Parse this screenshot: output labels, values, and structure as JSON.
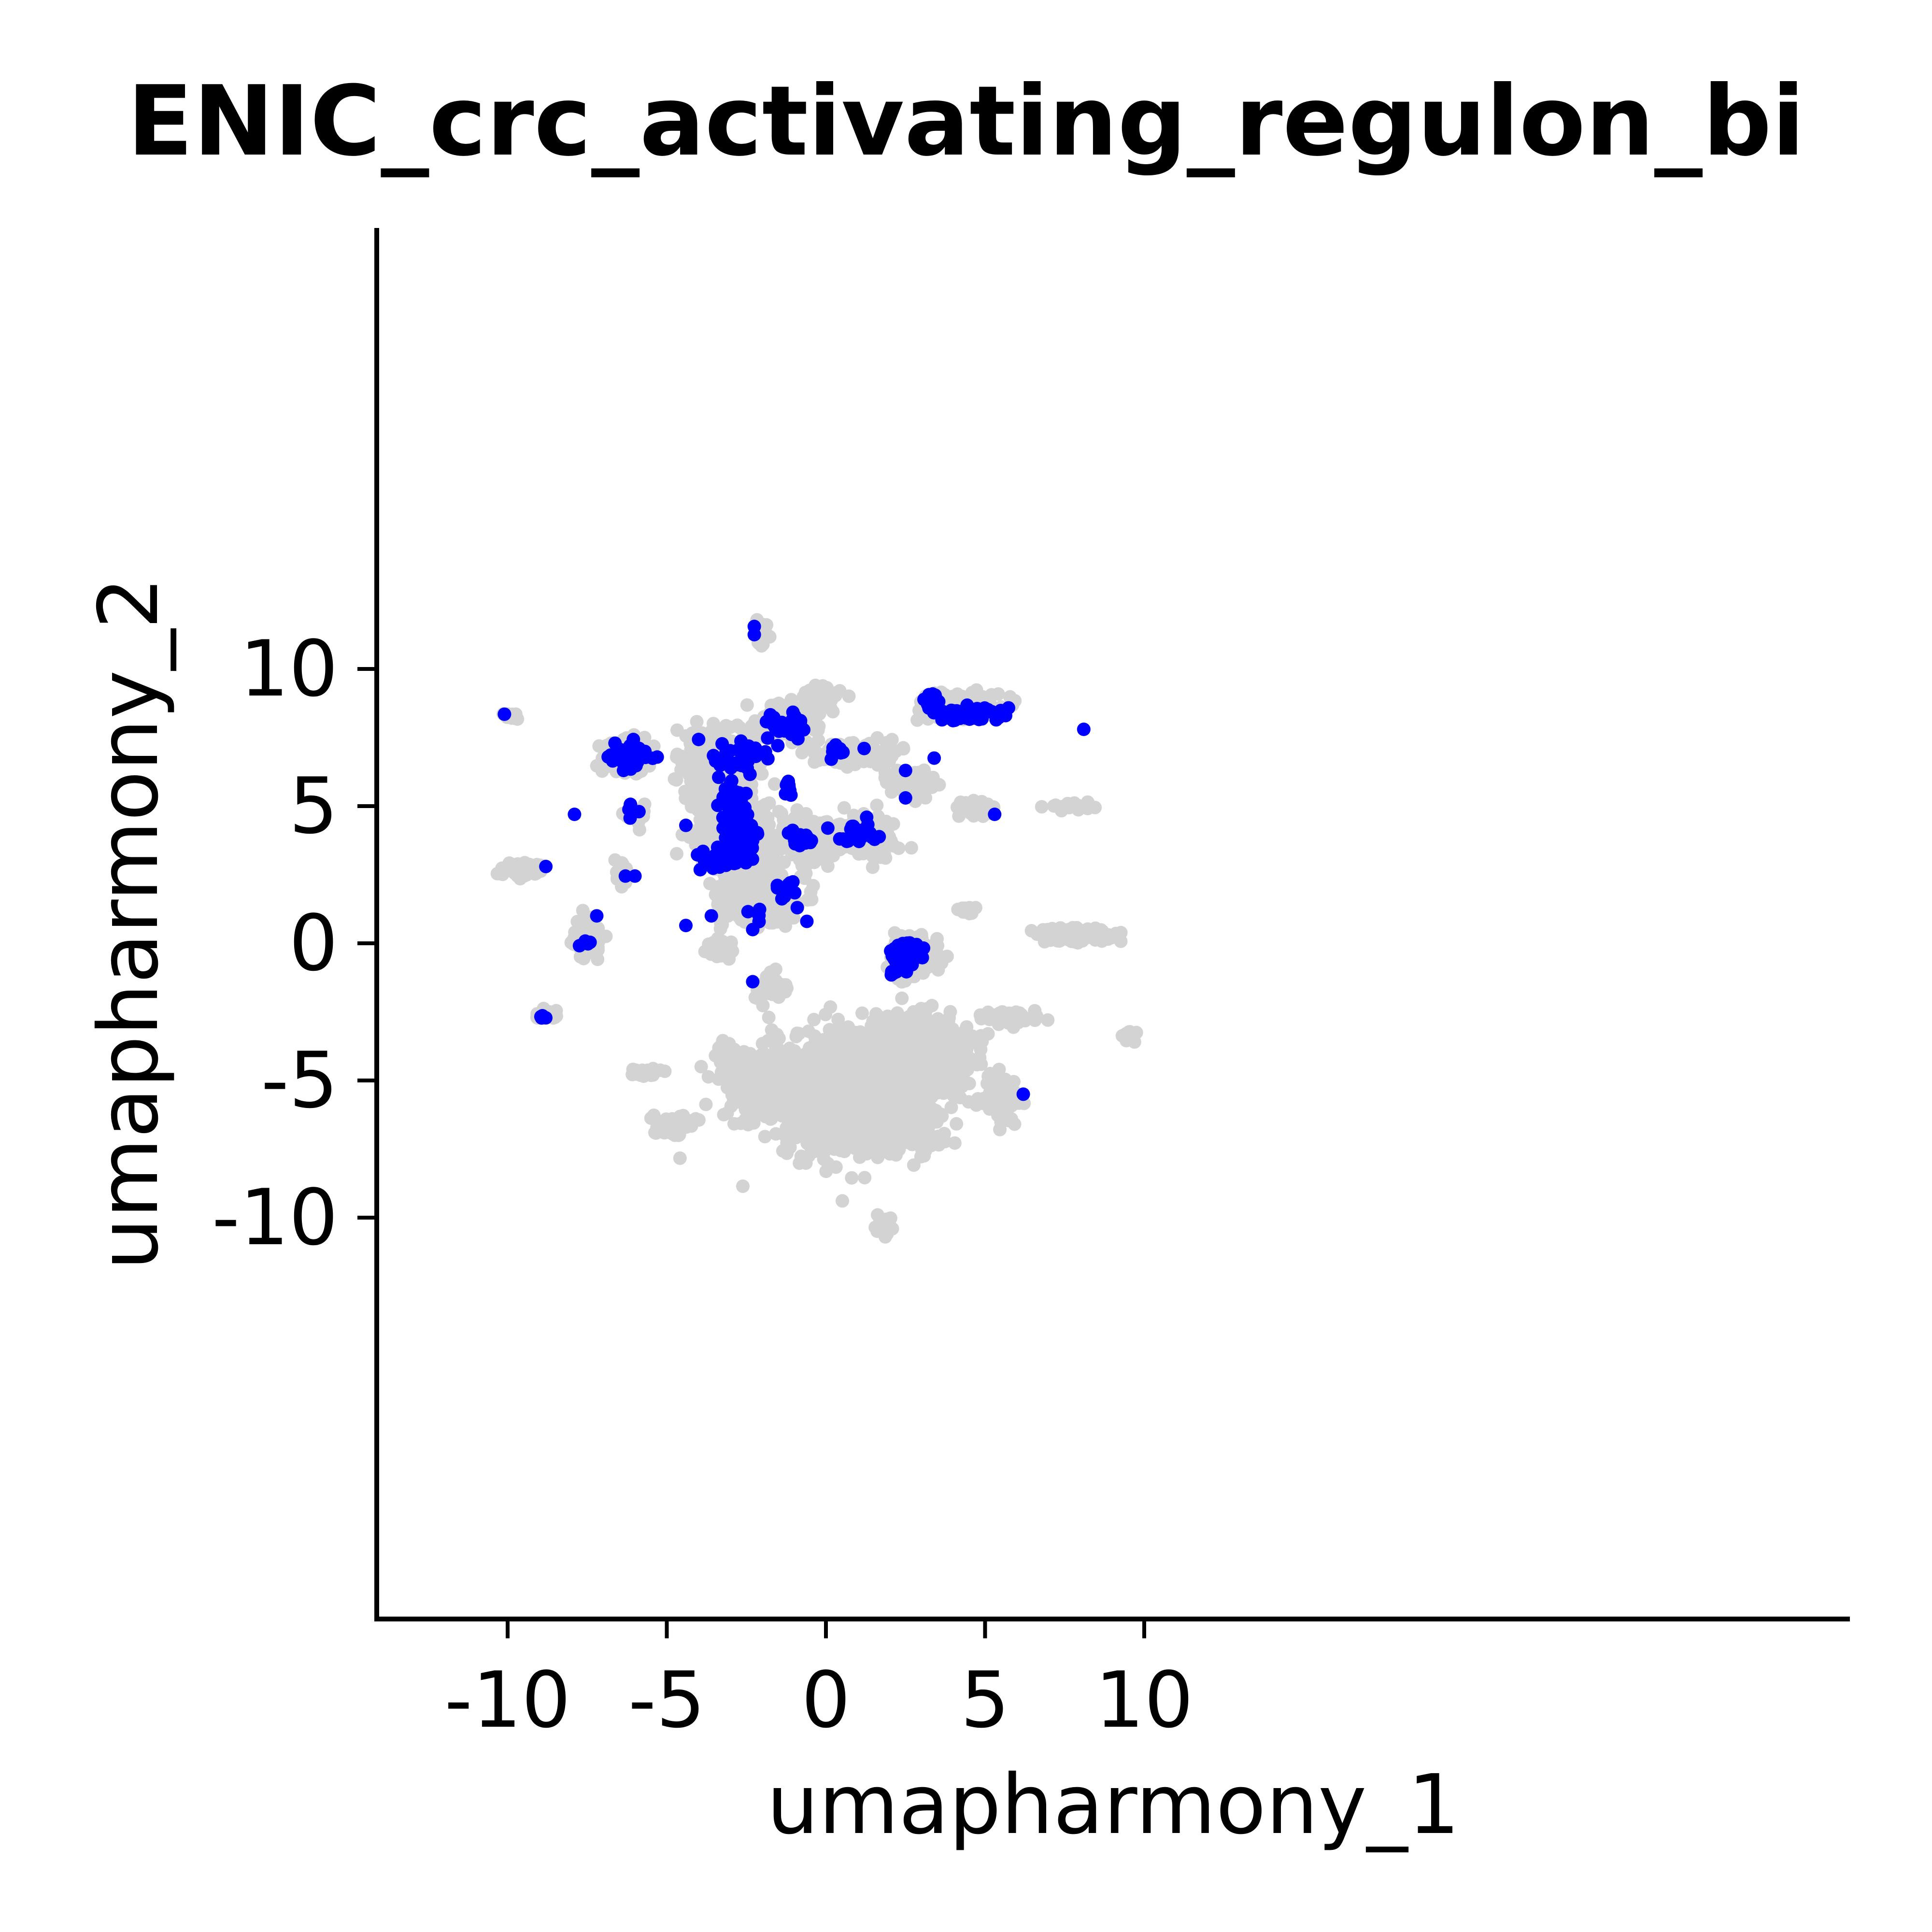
{
  "chart_data": {
    "type": "scatter",
    "title": "ENIC_crc_activating_regulon_bi",
    "xlabel": "umapharmony_1",
    "ylabel": "umapharmony_2",
    "xlim": [
      -12,
      11
    ],
    "ylim": [
      -12,
      13
    ],
    "x_ticks": [
      -10,
      -5,
      0,
      5,
      10
    ],
    "x_tick_labels": [
      "-10",
      "-5",
      "0",
      "5",
      "10"
    ],
    "y_ticks": [
      -10,
      -5,
      0,
      5,
      10
    ],
    "y_tick_labels": [
      "-10",
      "-5",
      "0",
      "5",
      "10"
    ],
    "grid": false,
    "legend": "none",
    "colors": {
      "background_cells": "#d3d3d3",
      "highlighted_cells": "#0000ff",
      "axis": "#000000"
    },
    "series": [
      {
        "color": "#d3d3d3",
        "clusters": [
          {
            "cx": 0.8,
            "cy": -5.5,
            "sx": 2.1,
            "sy": 1.6,
            "n": 1400
          },
          {
            "cx": 2.8,
            "cy": -4.0,
            "sx": 1.5,
            "sy": 1.0,
            "n": 700
          },
          {
            "cx": -1.8,
            "cy": -5.2,
            "sx": 1.2,
            "sy": 1.0,
            "n": 350
          },
          {
            "cx": 1.5,
            "cy": -7.0,
            "sx": 1.6,
            "sy": 0.5,
            "n": 250
          },
          {
            "cx": 5.5,
            "cy": -5.7,
            "sx": 0.5,
            "sy": 0.6,
            "n": 80
          },
          {
            "cx": -2.8,
            "cy": 3.7,
            "sx": 1.0,
            "sy": 1.5,
            "n": 450
          },
          {
            "cx": -3.4,
            "cy": 6.5,
            "sx": 1.0,
            "sy": 1.1,
            "n": 300
          },
          {
            "cx": -1.2,
            "cy": 8.1,
            "sx": 0.8,
            "sy": 0.5,
            "n": 180
          },
          {
            "cx": -0.5,
            "cy": 3.7,
            "sx": 0.8,
            "sy": 0.7,
            "n": 200
          },
          {
            "cx": 1.2,
            "cy": 3.9,
            "sx": 0.8,
            "sy": 0.6,
            "n": 160
          },
          {
            "cx": -2.0,
            "cy": 1.5,
            "sx": 1.0,
            "sy": 0.8,
            "n": 200
          },
          {
            "cx": -6.3,
            "cy": 6.8,
            "sx": 0.6,
            "sy": 0.5,
            "n": 180
          },
          {
            "cx": 0.9,
            "cy": 6.9,
            "sx": 1.0,
            "sy": 0.3,
            "n": 120
          },
          {
            "cx": 4.2,
            "cy": 8.7,
            "sx": 1.0,
            "sy": 0.4,
            "n": 220
          },
          {
            "cx": 2.8,
            "cy": -0.5,
            "sx": 0.6,
            "sy": 0.6,
            "n": 160
          },
          {
            "cx": 7.8,
            "cy": 0.3,
            "sx": 0.8,
            "sy": 0.2,
            "n": 150
          },
          {
            "cx": 2.7,
            "cy": 5.8,
            "sx": 0.6,
            "sy": 0.4,
            "n": 90
          },
          {
            "cx": -9.6,
            "cy": 2.7,
            "sx": 0.5,
            "sy": 0.2,
            "n": 90
          },
          {
            "cx": -7.5,
            "cy": 0.2,
            "sx": 0.4,
            "sy": 0.6,
            "n": 60
          },
          {
            "cx": -4.8,
            "cy": -6.7,
            "sx": 0.5,
            "sy": 0.3,
            "n": 60
          },
          {
            "cx": -5.6,
            "cy": -4.7,
            "sx": 0.4,
            "sy": 0.1,
            "n": 40
          },
          {
            "cx": -2.0,
            "cy": 11.3,
            "sx": 0.15,
            "sy": 0.4,
            "n": 40
          },
          {
            "cx": 1.8,
            "cy": -10.3,
            "sx": 0.2,
            "sy": 0.3,
            "n": 40
          },
          {
            "cx": 4.8,
            "cy": 5.0,
            "sx": 0.5,
            "sy": 0.25,
            "n": 40
          },
          {
            "cx": 7.8,
            "cy": 5.0,
            "sx": 0.4,
            "sy": 0.1,
            "n": 30
          },
          {
            "cx": 5.8,
            "cy": -2.7,
            "sx": 0.7,
            "sy": 0.25,
            "n": 50
          },
          {
            "cx": 9.5,
            "cy": -3.4,
            "sx": 0.2,
            "sy": 0.15,
            "n": 20
          },
          {
            "cx": -9.9,
            "cy": 8.3,
            "sx": 0.2,
            "sy": 0.1,
            "n": 20
          },
          {
            "cx": -8.8,
            "cy": -2.6,
            "sx": 0.3,
            "sy": 0.15,
            "n": 25
          },
          {
            "cx": -6.0,
            "cy": 4.7,
            "sx": 0.3,
            "sy": 0.3,
            "n": 30
          },
          {
            "cx": -6.4,
            "cy": 2.5,
            "sx": 0.2,
            "sy": 0.4,
            "n": 20
          },
          {
            "cx": -0.2,
            "cy": 9.0,
            "sx": 0.5,
            "sy": 0.3,
            "n": 60
          },
          {
            "cx": -1.6,
            "cy": -1.7,
            "sx": 0.5,
            "sy": 0.4,
            "n": 50
          },
          {
            "cx": -3.3,
            "cy": -0.2,
            "sx": 0.4,
            "sy": 0.3,
            "n": 30
          },
          {
            "cx": 4.4,
            "cy": 1.2,
            "sx": 0.2,
            "sy": 0.1,
            "n": 15
          },
          {
            "cx": -3.1,
            "cy": -3.9,
            "sx": 0.3,
            "sy": 0.3,
            "n": 30
          }
        ]
      },
      {
        "color": "#0000ff",
        "clusters": [
          {
            "cx": -2.7,
            "cy": 3.8,
            "sx": 0.35,
            "sy": 0.55,
            "n": 220
          },
          {
            "cx": -3.0,
            "cy": 5.2,
            "sx": 0.3,
            "sy": 0.5,
            "n": 50
          },
          {
            "cx": -3.5,
            "cy": 3.0,
            "sx": 0.4,
            "sy": 0.25,
            "n": 40
          },
          {
            "cx": -2.8,
            "cy": 6.8,
            "sx": 0.9,
            "sy": 0.7,
            "n": 40
          },
          {
            "cx": -6.2,
            "cy": 6.8,
            "sx": 0.45,
            "sy": 0.4,
            "n": 50
          },
          {
            "cx": -1.2,
            "cy": 8.0,
            "sx": 0.45,
            "sy": 0.3,
            "n": 40
          },
          {
            "cx": 4.3,
            "cy": 8.4,
            "sx": 0.75,
            "sy": 0.2,
            "n": 80
          },
          {
            "cx": 3.3,
            "cy": 8.9,
            "sx": 0.2,
            "sy": 0.2,
            "n": 15
          },
          {
            "cx": 2.5,
            "cy": -0.4,
            "sx": 0.4,
            "sy": 0.45,
            "n": 80
          },
          {
            "cx": -0.8,
            "cy": 3.8,
            "sx": 0.3,
            "sy": 0.2,
            "n": 25
          },
          {
            "cx": 1.0,
            "cy": 4.0,
            "sx": 0.5,
            "sy": 0.4,
            "n": 25
          },
          {
            "cx": -1.3,
            "cy": 2.0,
            "sx": 0.35,
            "sy": 0.4,
            "n": 15
          },
          {
            "cx": -1.2,
            "cy": 5.7,
            "sx": 0.15,
            "sy": 0.3,
            "n": 8
          },
          {
            "cx": 0.4,
            "cy": 7.0,
            "sx": 0.3,
            "sy": 0.2,
            "n": 12
          },
          {
            "cx": -7.5,
            "cy": 0.0,
            "sx": 0.15,
            "sy": 0.1,
            "n": 6
          },
          {
            "cx": -6.1,
            "cy": 4.8,
            "sx": 0.15,
            "sy": 0.2,
            "n": 5
          },
          {
            "cx": -8.9,
            "cy": -2.7,
            "sx": 0.1,
            "sy": 0.05,
            "n": 4
          },
          {
            "cx": -2.3,
            "cy": 0.9,
            "sx": 0.2,
            "sy": 0.3,
            "n": 4
          }
        ],
        "points": [
          [
            -10.1,
            8.35
          ],
          [
            -2.25,
            11.55
          ],
          [
            -2.25,
            11.25
          ],
          [
            8.1,
            7.8
          ],
          [
            5.3,
            4.7
          ],
          [
            6.2,
            -5.5
          ],
          [
            -7.9,
            4.7
          ],
          [
            -8.8,
            2.8
          ],
          [
            -7.2,
            1.0
          ],
          [
            -4.4,
            0.65
          ],
          [
            -2.3,
            -1.4
          ],
          [
            -2.3,
            0.5
          ],
          [
            -6.3,
            2.45
          ],
          [
            -6.0,
            2.45
          ],
          [
            3.4,
            6.75
          ],
          [
            2.5,
            6.3
          ],
          [
            2.5,
            5.3
          ],
          [
            -4.4,
            4.3
          ],
          [
            -3.6,
            1.0
          ],
          [
            1.2,
            7.1
          ],
          [
            -0.6,
            0.8
          ],
          [
            -0.9,
            1.3
          ]
        ]
      }
    ]
  }
}
